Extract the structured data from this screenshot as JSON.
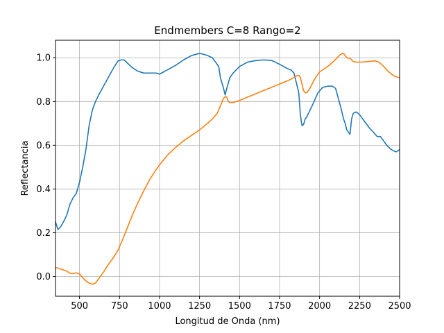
{
  "chart_data": {
    "type": "line",
    "title": "Endmembers C=8 Rango=2",
    "xlabel": "Longitud de Onda (nm)",
    "ylabel": "Reflectancia",
    "xlim": [
      350,
      2500
    ],
    "ylim": [
      -0.09,
      1.08
    ],
    "xticks": [
      500,
      750,
      1000,
      1250,
      1500,
      1750,
      2000,
      2250,
      2500
    ],
    "yticks": [
      0.0,
      0.2,
      0.4,
      0.6,
      0.8,
      1.0
    ],
    "xtick_labels": [
      "500",
      "750",
      "1000",
      "1250",
      "1500",
      "1750",
      "2000",
      "2250",
      "2500"
    ],
    "ytick_labels": [
      "0.0",
      "0.2",
      "0.4",
      "0.6",
      "0.8",
      "1.0"
    ],
    "grid": true,
    "legend": "none",
    "series": [
      {
        "color": "#1f77b4",
        "x": [
          350,
          365,
          380,
          400,
          420,
          440,
          460,
          480,
          500,
          520,
          540,
          560,
          580,
          600,
          620,
          650,
          680,
          710,
          740,
          760,
          780,
          800,
          830,
          860,
          900,
          940,
          980,
          1000,
          1050,
          1100,
          1150,
          1200,
          1250,
          1280,
          1300,
          1330,
          1350,
          1370,
          1380,
          1400,
          1410,
          1420,
          1440,
          1460,
          1480,
          1500,
          1550,
          1600,
          1650,
          1700,
          1750,
          1780,
          1800,
          1820,
          1840,
          1850,
          1870,
          1880,
          1890,
          1900,
          1910,
          1920,
          1950,
          1990,
          2020,
          2050,
          2080,
          2100,
          2130,
          2140,
          2150,
          2160,
          2170,
          2180,
          2190,
          2200,
          2210,
          2220,
          2230,
          2250,
          2270,
          2290,
          2310,
          2330,
          2360,
          2380,
          2400,
          2420,
          2440,
          2460,
          2480,
          2500
        ],
        "y": [
          0.25,
          0.215,
          0.225,
          0.25,
          0.28,
          0.33,
          0.36,
          0.38,
          0.43,
          0.5,
          0.58,
          0.69,
          0.76,
          0.8,
          0.83,
          0.87,
          0.91,
          0.95,
          0.985,
          0.99,
          0.99,
          0.975,
          0.955,
          0.94,
          0.93,
          0.93,
          0.93,
          0.925,
          0.945,
          0.965,
          0.99,
          1.01,
          1.02,
          1.015,
          1.01,
          1.0,
          0.98,
          0.96,
          0.91,
          0.86,
          0.83,
          0.86,
          0.91,
          0.93,
          0.945,
          0.96,
          0.98,
          0.987,
          0.99,
          0.988,
          0.97,
          0.958,
          0.95,
          0.945,
          0.93,
          0.9,
          0.84,
          0.74,
          0.69,
          0.695,
          0.72,
          0.73,
          0.775,
          0.84,
          0.865,
          0.87,
          0.87,
          0.86,
          0.78,
          0.75,
          0.72,
          0.7,
          0.67,
          0.66,
          0.65,
          0.72,
          0.745,
          0.75,
          0.752,
          0.74,
          0.72,
          0.7,
          0.68,
          0.665,
          0.64,
          0.64,
          0.62,
          0.6,
          0.585,
          0.575,
          0.57,
          0.58
        ]
      },
      {
        "color": "#ff7f0e",
        "x": [
          350,
          360,
          370,
          380,
          400,
          420,
          440,
          460,
          480,
          500,
          520,
          540,
          560,
          580,
          600,
          620,
          650,
          680,
          710,
          740,
          770,
          800,
          830,
          860,
          900,
          940,
          980,
          1000,
          1050,
          1100,
          1150,
          1200,
          1250,
          1300,
          1330,
          1360,
          1380,
          1400,
          1410,
          1420,
          1430,
          1440,
          1460,
          1480,
          1500,
          1550,
          1600,
          1650,
          1700,
          1750,
          1800,
          1830,
          1850,
          1870,
          1880,
          1890,
          1900,
          1910,
          1920,
          1940,
          1960,
          1980,
          2000,
          2030,
          2060,
          2090,
          2110,
          2130,
          2145,
          2155,
          2165,
          2175,
          2185,
          2195,
          2205,
          2215,
          2230,
          2260,
          2290,
          2310,
          2330,
          2350,
          2370,
          2390,
          2410,
          2430,
          2450,
          2470,
          2490,
          2500
        ],
        "y": [
          0.04,
          0.04,
          0.038,
          0.035,
          0.03,
          0.025,
          0.015,
          0.013,
          0.017,
          0.012,
          -0.005,
          -0.02,
          -0.03,
          -0.035,
          -0.03,
          -0.01,
          0.02,
          0.055,
          0.085,
          0.12,
          0.17,
          0.225,
          0.28,
          0.33,
          0.39,
          0.445,
          0.49,
          0.51,
          0.555,
          0.59,
          0.62,
          0.645,
          0.67,
          0.7,
          0.72,
          0.745,
          0.78,
          0.815,
          0.822,
          0.82,
          0.8,
          0.795,
          0.795,
          0.8,
          0.805,
          0.82,
          0.835,
          0.85,
          0.865,
          0.88,
          0.895,
          0.905,
          0.915,
          0.92,
          0.91,
          0.88,
          0.85,
          0.84,
          0.84,
          0.86,
          0.89,
          0.915,
          0.935,
          0.95,
          0.965,
          0.985,
          1.0,
          1.015,
          1.02,
          1.015,
          1.005,
          0.998,
          0.998,
          0.995,
          0.985,
          0.982,
          0.98,
          0.98,
          0.982,
          0.983,
          0.985,
          0.985,
          0.98,
          0.968,
          0.953,
          0.937,
          0.925,
          0.915,
          0.91,
          0.91
        ]
      }
    ]
  }
}
